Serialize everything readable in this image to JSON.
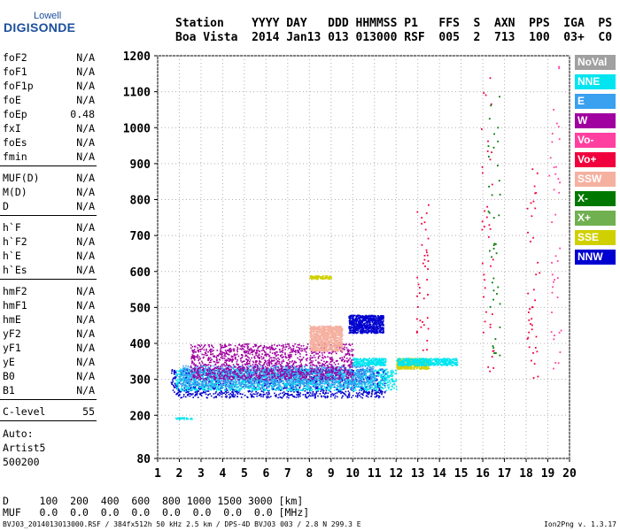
{
  "logo": {
    "brand": "Lowell",
    "name": "DIGISONDE"
  },
  "header": {
    "labels": "Station    YYYY DAY   DDD HHMMSS P1   FFS  S  AXN  PPS  IGA  PS",
    "values": "Boa Vista  2014 Jan13 013 013000 RSF  005  2  713  100  03+  C0"
  },
  "params": {
    "group1": [
      {
        "name": "foF2",
        "value": "N/A"
      },
      {
        "name": "foF1",
        "value": "N/A"
      },
      {
        "name": "foF1p",
        "value": "N/A"
      },
      {
        "name": "foE",
        "value": "N/A"
      },
      {
        "name": "foEp",
        "value": "0.48"
      },
      {
        "name": "fxI",
        "value": "N/A"
      },
      {
        "name": "foEs",
        "value": "N/A"
      },
      {
        "name": "fmin",
        "value": "N/A"
      }
    ],
    "group2": [
      {
        "name": "MUF(D)",
        "value": "N/A"
      },
      {
        "name": "M(D)",
        "value": "N/A"
      },
      {
        "name": "D",
        "value": "N/A"
      }
    ],
    "group3": [
      {
        "name": "h`F",
        "value": "N/A"
      },
      {
        "name": "h`F2",
        "value": "N/A"
      },
      {
        "name": "h`E",
        "value": "N/A"
      },
      {
        "name": "h`Es",
        "value": "N/A"
      }
    ],
    "group4": [
      {
        "name": "hmF2",
        "value": "N/A"
      },
      {
        "name": "hmF1",
        "value": "N/A"
      },
      {
        "name": "hmE",
        "value": "N/A"
      },
      {
        "name": "yF2",
        "value": "N/A"
      },
      {
        "name": "yF1",
        "value": "N/A"
      },
      {
        "name": "yE",
        "value": "N/A"
      },
      {
        "name": "B0",
        "value": "N/A"
      },
      {
        "name": "B1",
        "value": "N/A"
      }
    ],
    "clevel": {
      "name": "C-level",
      "value": "55"
    },
    "auto": [
      "Auto:",
      "Artist5",
      "500200"
    ]
  },
  "legend": [
    {
      "label": "NoVal",
      "color": "#a0a0a0"
    },
    {
      "label": "NNE",
      "color": "#00e5f0"
    },
    {
      "label": "E",
      "color": "#3aa0f0"
    },
    {
      "label": "W",
      "color": "#a000a0"
    },
    {
      "label": "Vo-",
      "color": "#ff40a0"
    },
    {
      "label": "Vo+",
      "color": "#f0003c"
    },
    {
      "label": "SSW",
      "color": "#f5b0a0"
    },
    {
      "label": "X-",
      "color": "#007800"
    },
    {
      "label": "X+",
      "color": "#70b050"
    },
    {
      "label": "SSE",
      "color": "#d0d000"
    },
    {
      "label": "NNW",
      "color": "#0000d0"
    }
  ],
  "footer": {
    "d_row": "D     100  200  400  600  800 1000 1500 3000 [km]",
    "muf_row": "MUF   0.0  0.0  0.0  0.0  0.0  0.0  0.0  0.0 [MHz]",
    "caption": "BVJ03_2014013013000.RSF / 384fx512h 50 kHz 2.5 km / DPS-4D BVJ03 003 / 2.8 N 299.3 E",
    "version": "Ion2Png v. 1.3.17"
  },
  "chart_data": {
    "type": "scatter",
    "title": "",
    "xlabel": "",
    "ylabel": "",
    "xlim": [
      1,
      20
    ],
    "ylim": [
      80,
      1200
    ],
    "x_ticks": [
      1,
      2,
      3,
      4,
      5,
      6,
      7,
      8,
      9,
      10,
      11,
      12,
      13,
      14,
      15,
      16,
      17,
      18,
      19,
      20
    ],
    "y_ticks": [
      80,
      200,
      300,
      400,
      500,
      600,
      700,
      800,
      900,
      1000,
      1100,
      1200
    ],
    "grid": "dotted",
    "legend_position": "right",
    "clusters": [
      {
        "series": "NNW",
        "x": [
          1.6,
          11.5
        ],
        "y": [
          250,
          330
        ]
      },
      {
        "series": "NNE",
        "x": [
          1.8,
          12.0
        ],
        "y": [
          270,
          330
        ]
      },
      {
        "series": "E",
        "x": [
          2.0,
          11.0
        ],
        "y": [
          280,
          340
        ]
      },
      {
        "series": "W",
        "x": [
          2.5,
          10.0
        ],
        "y": [
          300,
          400
        ]
      },
      {
        "series": "NNW",
        "x": [
          9.8,
          11.4
        ],
        "y": [
          430,
          480
        ]
      },
      {
        "series": "NNE",
        "x": [
          10.0,
          11.5
        ],
        "y": [
          340,
          360
        ]
      },
      {
        "series": "SSE",
        "x": [
          12.0,
          13.5
        ],
        "y": [
          330,
          360
        ]
      },
      {
        "series": "NNE",
        "x": [
          12.0,
          14.8
        ],
        "y": [
          340,
          360
        ]
      },
      {
        "series": "SSW",
        "x": [
          8.0,
          9.5
        ],
        "y": [
          380,
          450
        ]
      },
      {
        "series": "SSE",
        "x": [
          8.0,
          9.0
        ],
        "y": [
          580,
          590
        ]
      },
      {
        "series": "NNE",
        "x": [
          1.8,
          2.6
        ],
        "y": [
          190,
          195
        ]
      }
    ],
    "sparse_vertical": [
      {
        "series": "Vo+",
        "x": 13.2,
        "y": [
          380,
          800
        ]
      },
      {
        "series": "Vo+",
        "x": 16.2,
        "y": [
          300,
          1150
        ]
      },
      {
        "series": "Vo+",
        "x": 18.3,
        "y": [
          300,
          900
        ]
      },
      {
        "series": "Vo-",
        "x": 19.3,
        "y": [
          300,
          1200
        ]
      },
      {
        "series": "X-",
        "x": 16.5,
        "y": [
          350,
          1100
        ]
      }
    ]
  }
}
